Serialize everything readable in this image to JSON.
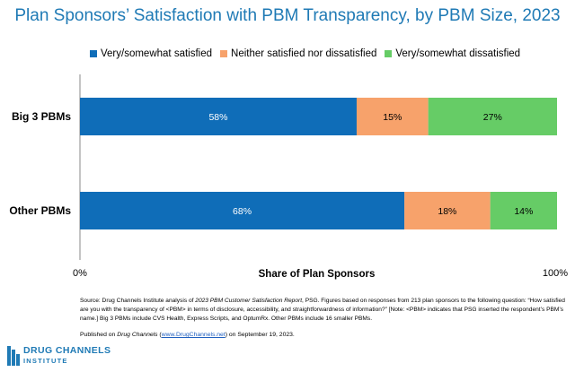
{
  "chart_data": {
    "type": "bar",
    "orientation": "horizontal",
    "stacked": true,
    "title": "Plan Sponsors’ Satisfaction with PBM Transparency, by PBM Size, 2023",
    "xlabel": "Share of Plan Sponsors",
    "xlim": [
      0,
      100
    ],
    "x_tick_labels": [
      "0%",
      "100%"
    ],
    "legend_position": "top",
    "categories": [
      "Big 3 PBMs",
      "Other PBMs"
    ],
    "series": [
      {
        "name": "Very/somewhat satisfied",
        "values": [
          58,
          68
        ],
        "labels": [
          "58%",
          "68%"
        ],
        "color": "#0f6db8",
        "label_color": "#ffffff"
      },
      {
        "name": "Neither satisfied nor dissatisfied",
        "values": [
          15,
          18
        ],
        "labels": [
          "15%",
          "18%"
        ],
        "color": "#f7a26b",
        "label_color": "#000000"
      },
      {
        "name": "Very/somewhat dissatisfied",
        "values": [
          27,
          14
        ],
        "labels": [
          "27%",
          "14%"
        ],
        "color": "#66cc66",
        "label_color": "#000000"
      }
    ]
  },
  "footer": {
    "source_prefix": "Source: Drug Channels Institute analysis of ",
    "source_report": "2023 PBM Customer Satisfaction Report",
    "source_rest": ", PSG. Figures based on responses from 213 plan sponsors to the following question: “How satisfied are you with the transparency of <PBM> in terms of disclosure, accessibility, and straightforwardness of information?” [Note: <PBM> indicates that PSG inserted the respondent’s PBM’s name.] Big 3 PBMs include CVS Health, Express Scripts, and OptumRx. Other PBMs include 16 smaller PBMs.",
    "published_prefix": "Published on ",
    "published_site": "Drug Channels",
    "published_paren_open": " (",
    "published_link": "www.DrugChannels.net",
    "published_suffix": ") on September 19, 2023."
  },
  "logo": {
    "line1": "DRUG CHANNELS",
    "line2": "INSTITUTE",
    "color": "#1f7ab5"
  }
}
